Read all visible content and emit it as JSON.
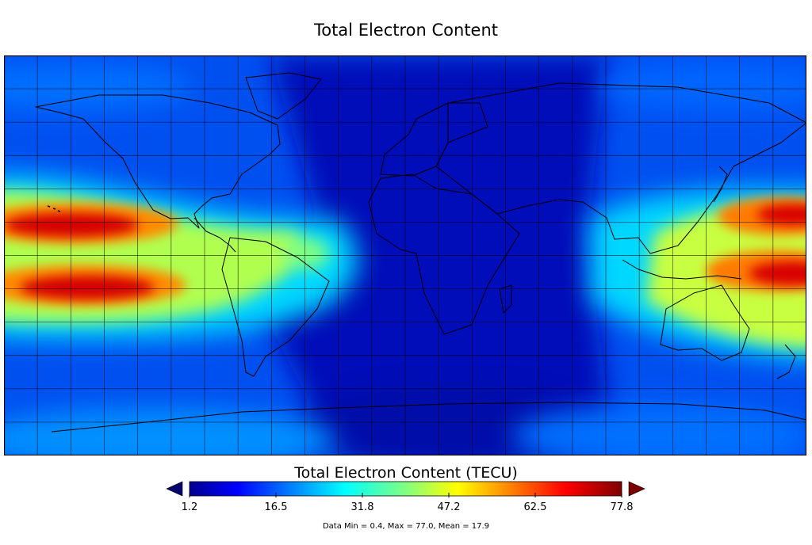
{
  "title": "Total Electron Content",
  "map": {
    "projection": "equirectangular",
    "basemap": "coastlines",
    "graticule": "on",
    "colormap": "jet",
    "value_range": [
      1.2,
      77.8
    ],
    "field_features": [
      {
        "name": "northern equatorial anomaly crest",
        "location": "central Pacific",
        "approx_tecu": 77
      },
      {
        "name": "southern equatorial anomaly crest",
        "location": "central Pacific",
        "approx_tecu": 74
      },
      {
        "name": "northern crest (eastern edge)",
        "location": "western Pacific",
        "approx_tecu": 70
      },
      {
        "name": "southern crest (eastern edge)",
        "location": "western Pacific / Australia",
        "approx_tecu": 68
      },
      {
        "name": "equatorial band",
        "location": "South America / South Atlantic",
        "approx_tecu": 40
      },
      {
        "name": "night-side minimum",
        "location": "Africa / Europe / Indian Ocean",
        "approx_tecu": 2
      }
    ]
  },
  "colorbar": {
    "title": "Total Electron Content (TECU)",
    "ticks": [
      "1.2",
      "16.5",
      "31.8",
      "47.2",
      "62.5",
      "77.8"
    ],
    "extend": "both",
    "min_arrow_color": "#06066e",
    "max_arrow_color": "#7a0000"
  },
  "stats": "Data Min = 0.4, Max = 77.0, Mean = 17.9",
  "colors": {
    "background": "#ffffff",
    "coastline": "#000000",
    "grid": "#000000",
    "jet_low": "#00008f",
    "jet_mid": "#80ff80",
    "jet_high": "#800000"
  }
}
